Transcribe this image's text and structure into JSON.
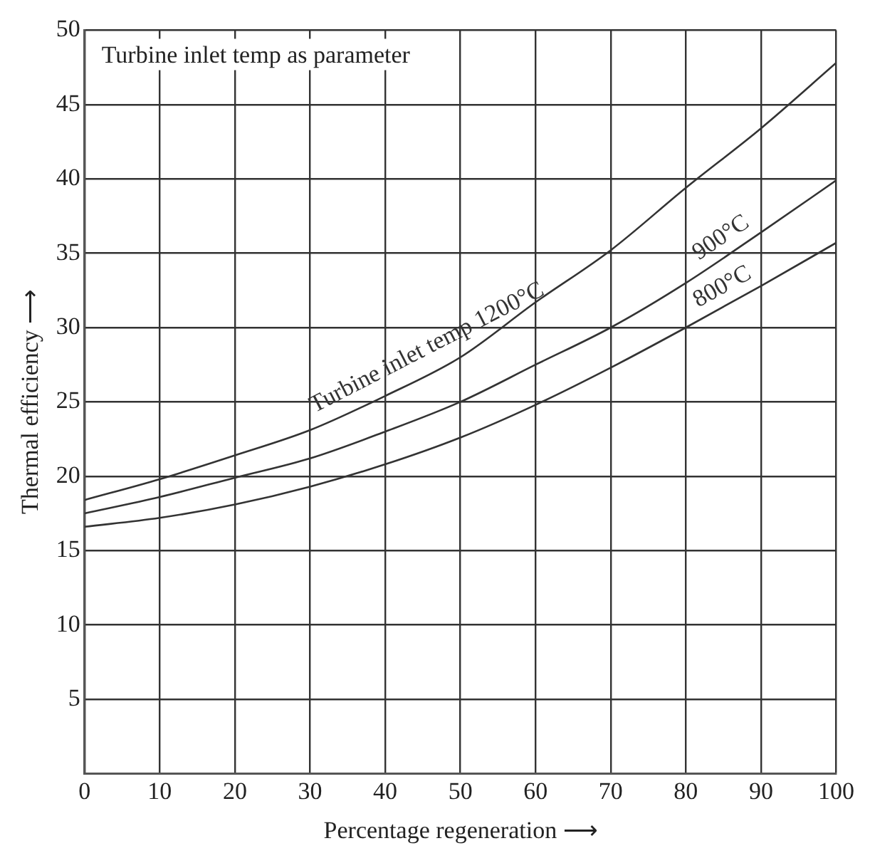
{
  "chart_data": {
    "type": "line",
    "xlabel": "Percentage regeneration ⟶",
    "ylabel": "Thermal efficiency ⟶",
    "annotations": [
      "Turbine inlet temp as parameter"
    ],
    "x": [
      0,
      10,
      20,
      30,
      40,
      50,
      60,
      70,
      80,
      90,
      100
    ],
    "series": [
      {
        "name": "Turbine inlet temp 1200°C",
        "color": "#333333",
        "values": [
          18.4,
          19.8,
          21.4,
          23.1,
          25.4,
          28.0,
          31.7,
          35.2,
          39.4,
          43.4,
          47.8
        ]
      },
      {
        "name": "900°C",
        "color": "#333333",
        "values": [
          17.5,
          18.6,
          19.9,
          21.2,
          23.0,
          25.0,
          27.5,
          30.0,
          33.0,
          36.4,
          39.9
        ]
      },
      {
        "name": "800°C",
        "color": "#333333",
        "values": [
          16.6,
          17.2,
          18.1,
          19.3,
          20.8,
          22.6,
          24.8,
          27.3,
          30.0,
          32.8,
          35.7
        ]
      }
    ],
    "xlim": [
      0,
      100
    ],
    "xticks": [
      0,
      10,
      20,
      30,
      40,
      50,
      60,
      70,
      80,
      90,
      100
    ],
    "ylim": [
      0,
      50
    ],
    "yticks": [
      5,
      10,
      15,
      20,
      25,
      30,
      35,
      40,
      45,
      50
    ],
    "grid": true,
    "legend": false,
    "marker": "none",
    "line_style": "solid"
  }
}
